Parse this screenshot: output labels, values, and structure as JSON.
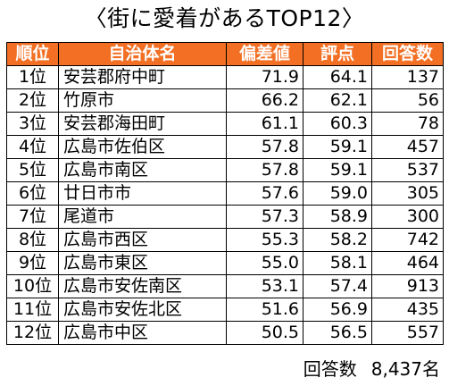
{
  "title": "〈街に愛着があるTOP12〉",
  "chart_data": {
    "type": "table",
    "columns": [
      "順位",
      "自治体名",
      "偏差値",
      "評点",
      "回答数"
    ],
    "rows": [
      {
        "rank": "1位",
        "name": "安芸郡府中町",
        "deviation": "71.9",
        "score": "64.1",
        "count": "137"
      },
      {
        "rank": "2位",
        "name": "竹原市",
        "deviation": "66.2",
        "score": "62.1",
        "count": "56"
      },
      {
        "rank": "3位",
        "name": "安芸郡海田町",
        "deviation": "61.1",
        "score": "60.3",
        "count": "78"
      },
      {
        "rank": "4位",
        "name": "広島市佐伯区",
        "deviation": "57.8",
        "score": "59.1",
        "count": "457"
      },
      {
        "rank": "5位",
        "name": "広島市南区",
        "deviation": "57.8",
        "score": "59.1",
        "count": "537"
      },
      {
        "rank": "6位",
        "name": "廿日市市",
        "deviation": "57.6",
        "score": "59.0",
        "count": "305"
      },
      {
        "rank": "7位",
        "name": "尾道市",
        "deviation": "57.3",
        "score": "58.9",
        "count": "300"
      },
      {
        "rank": "8位",
        "name": "広島市西区",
        "deviation": "55.3",
        "score": "58.2",
        "count": "742"
      },
      {
        "rank": "9位",
        "name": "広島市東区",
        "deviation": "55.0",
        "score": "58.1",
        "count": "464"
      },
      {
        "rank": "10位",
        "name": "広島市安佐南区",
        "deviation": "53.1",
        "score": "57.4",
        "count": "913"
      },
      {
        "rank": "11位",
        "name": "広島市安佐北区",
        "deviation": "51.6",
        "score": "56.9",
        "count": "435"
      },
      {
        "rank": "12位",
        "name": "広島市中区",
        "deviation": "50.5",
        "score": "56.5",
        "count": "557"
      }
    ]
  },
  "footer": {
    "label": "回答数",
    "value": "8,437名"
  },
  "colors": {
    "header_bg": "#f26f23",
    "header_text": "#ffffff",
    "border": "#000000"
  }
}
